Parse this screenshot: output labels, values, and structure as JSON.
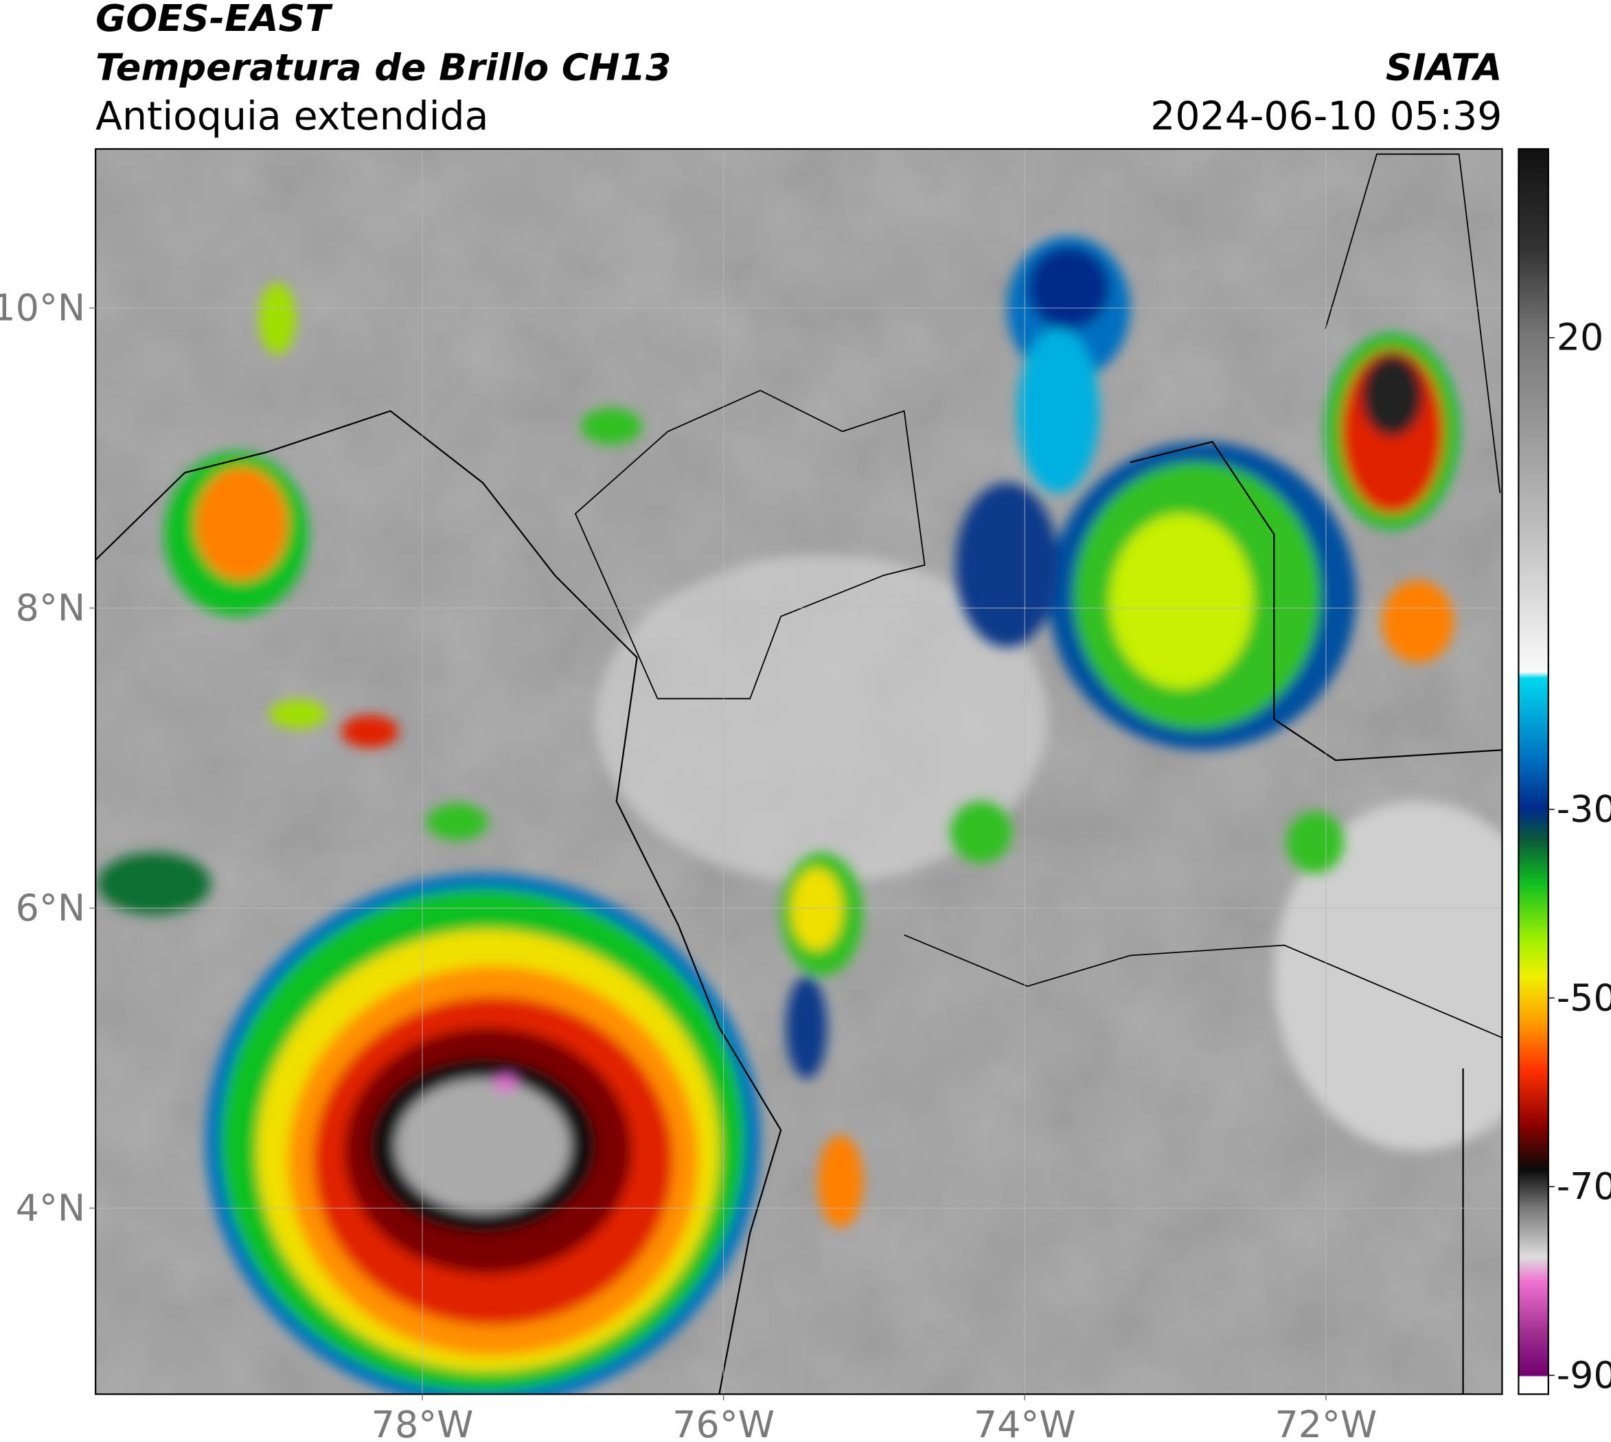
{
  "header": {
    "title": "GOES-EAST",
    "product": "Temperatura de Brillo CH13",
    "region": "Antioquia extendida",
    "source": "SIATA",
    "datetime": "2024-06-10 05:39"
  },
  "map": {
    "xlim": [
      -80.17,
      -70.83
    ],
    "ylim": [
      2.76,
      11.06
    ],
    "xticks": [
      {
        "value": -78,
        "label": "78°W"
      },
      {
        "value": -76,
        "label": "76°W"
      },
      {
        "value": -74,
        "label": "74°W"
      },
      {
        "value": -72,
        "label": "72°W"
      }
    ],
    "yticks": [
      {
        "value": 4,
        "label": "4°N"
      },
      {
        "value": 6,
        "label": "6°N"
      },
      {
        "value": 8,
        "label": "8°N"
      },
      {
        "value": 10,
        "label": "10°N"
      }
    ],
    "grid": true
  },
  "colorbar": {
    "lim": [
      -92,
      40
    ],
    "ticks": [
      20,
      -30,
      -50,
      -70,
      -90
    ]
  }
}
